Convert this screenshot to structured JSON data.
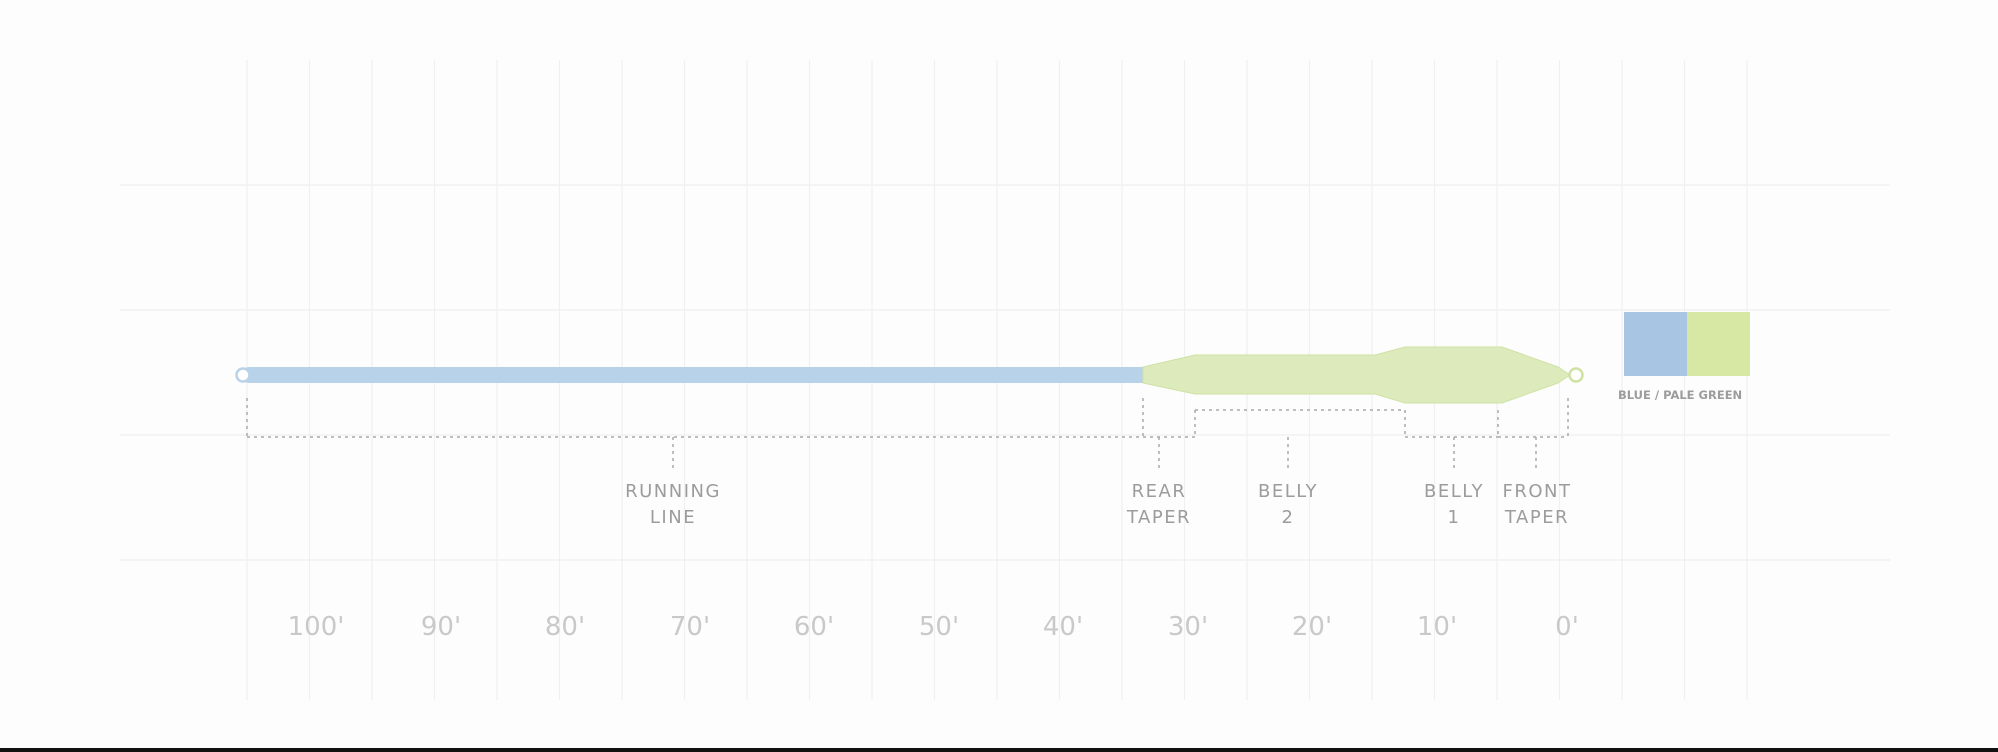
{
  "segments": [
    {
      "line1": "RUNNING",
      "line2": "LINE"
    },
    {
      "line1": "REAR",
      "line2": "TAPER"
    },
    {
      "line1": "BELLY",
      "line2": "2"
    },
    {
      "line1": "BELLY",
      "line2": "1"
    },
    {
      "line1": "FRONT",
      "line2": "TAPER"
    }
  ],
  "ruler": [
    "100'",
    "90'",
    "80'",
    "70'",
    "60'",
    "50'",
    "40'",
    "30'",
    "20'",
    "10'",
    "0'"
  ],
  "swatch": {
    "label": "BLUE / PALE GREEN",
    "colors": [
      "#a8c6e3",
      "#d6e8a4"
    ]
  },
  "colors": {
    "running_line": "#b8d2ea",
    "head": "#ddebbc",
    "head_edge": "#cfe2a4",
    "grid": "#f0f0f0",
    "bracket": "#aaaaaa",
    "label": "#9c9c9c",
    "ruler": "#c9c9c9"
  }
}
